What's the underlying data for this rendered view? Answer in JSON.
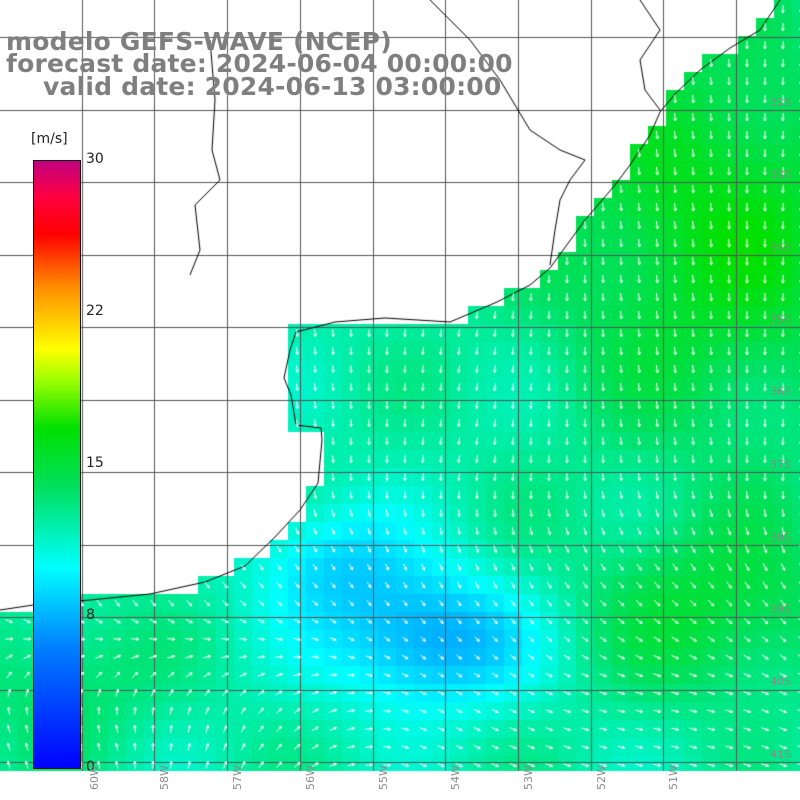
{
  "title": {
    "line1": "modelo GEFS-WAVE (NCEP)",
    "line2": "forecast date: 2024-06-04 00:00:00",
    "line3": "valid date: 2024-06-13 03:00:00"
  },
  "colorbar": {
    "unit": "[m/s]",
    "ticks": [
      "30",
      "22",
      "15",
      "8",
      "0"
    ],
    "tick_values": [
      30,
      22,
      15,
      8,
      0
    ],
    "min": 0,
    "max": 30,
    "colors": [
      "#0000ff",
      "#0080ff",
      "#00ffff",
      "#00e060",
      "#00e000",
      "#a0ff00",
      "#ffff00",
      "#ff9000",
      "#ff0000",
      "#ff0040",
      "#c00080"
    ]
  },
  "lon_labels": [
    "60W",
    "58W",
    "57W",
    "56W",
    "55W",
    "54W",
    "53W",
    "52W",
    "51W"
  ],
  "lat_labels": [
    "32S",
    "33S",
    "34S",
    "35S",
    "36S",
    "37S",
    "38S",
    "39S",
    "40S",
    "41S"
  ],
  "colors": {
    "land": "#ffffff",
    "grid": "#555555",
    "coast": "#000000",
    "arrow": "#ffffff",
    "title": "#7f7f7f"
  }
}
